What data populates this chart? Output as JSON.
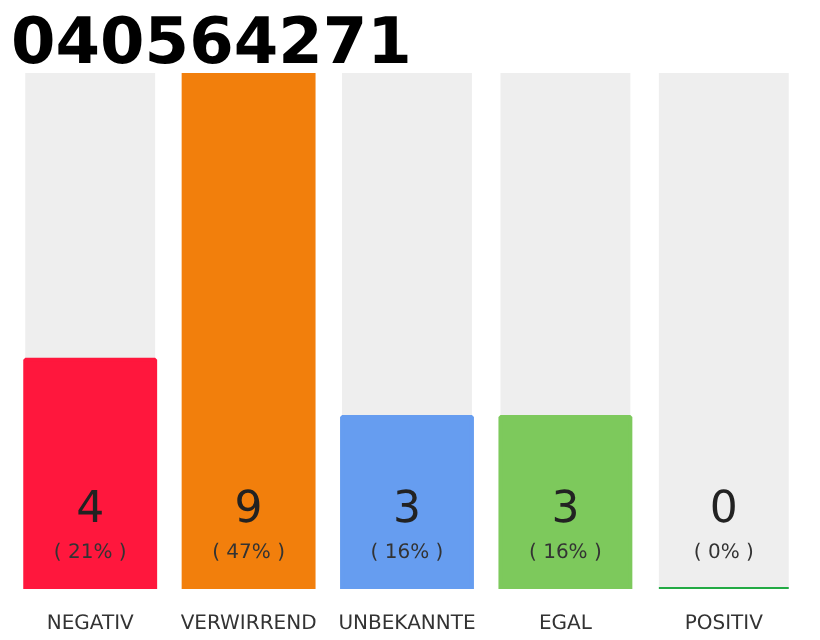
{
  "chart_data": {
    "type": "bar",
    "title": "040564271",
    "categories": [
      "NEGATIV",
      "VERWIRREND",
      "UNBEKANNTE",
      "EGAL",
      "POSITIV"
    ],
    "values": [
      4,
      9,
      3,
      3,
      0
    ],
    "colors": [
      "#ff173d",
      "#f27f0c",
      "#669df0",
      "#7dc95c",
      "#22aa44"
    ],
    "value_labels": [
      "4\n( 21% )",
      "9\n( 47% )",
      "3\n( 16% )",
      "3\n( 16% )",
      "0\n( 0% )"
    ],
    "grid": false
  }
}
